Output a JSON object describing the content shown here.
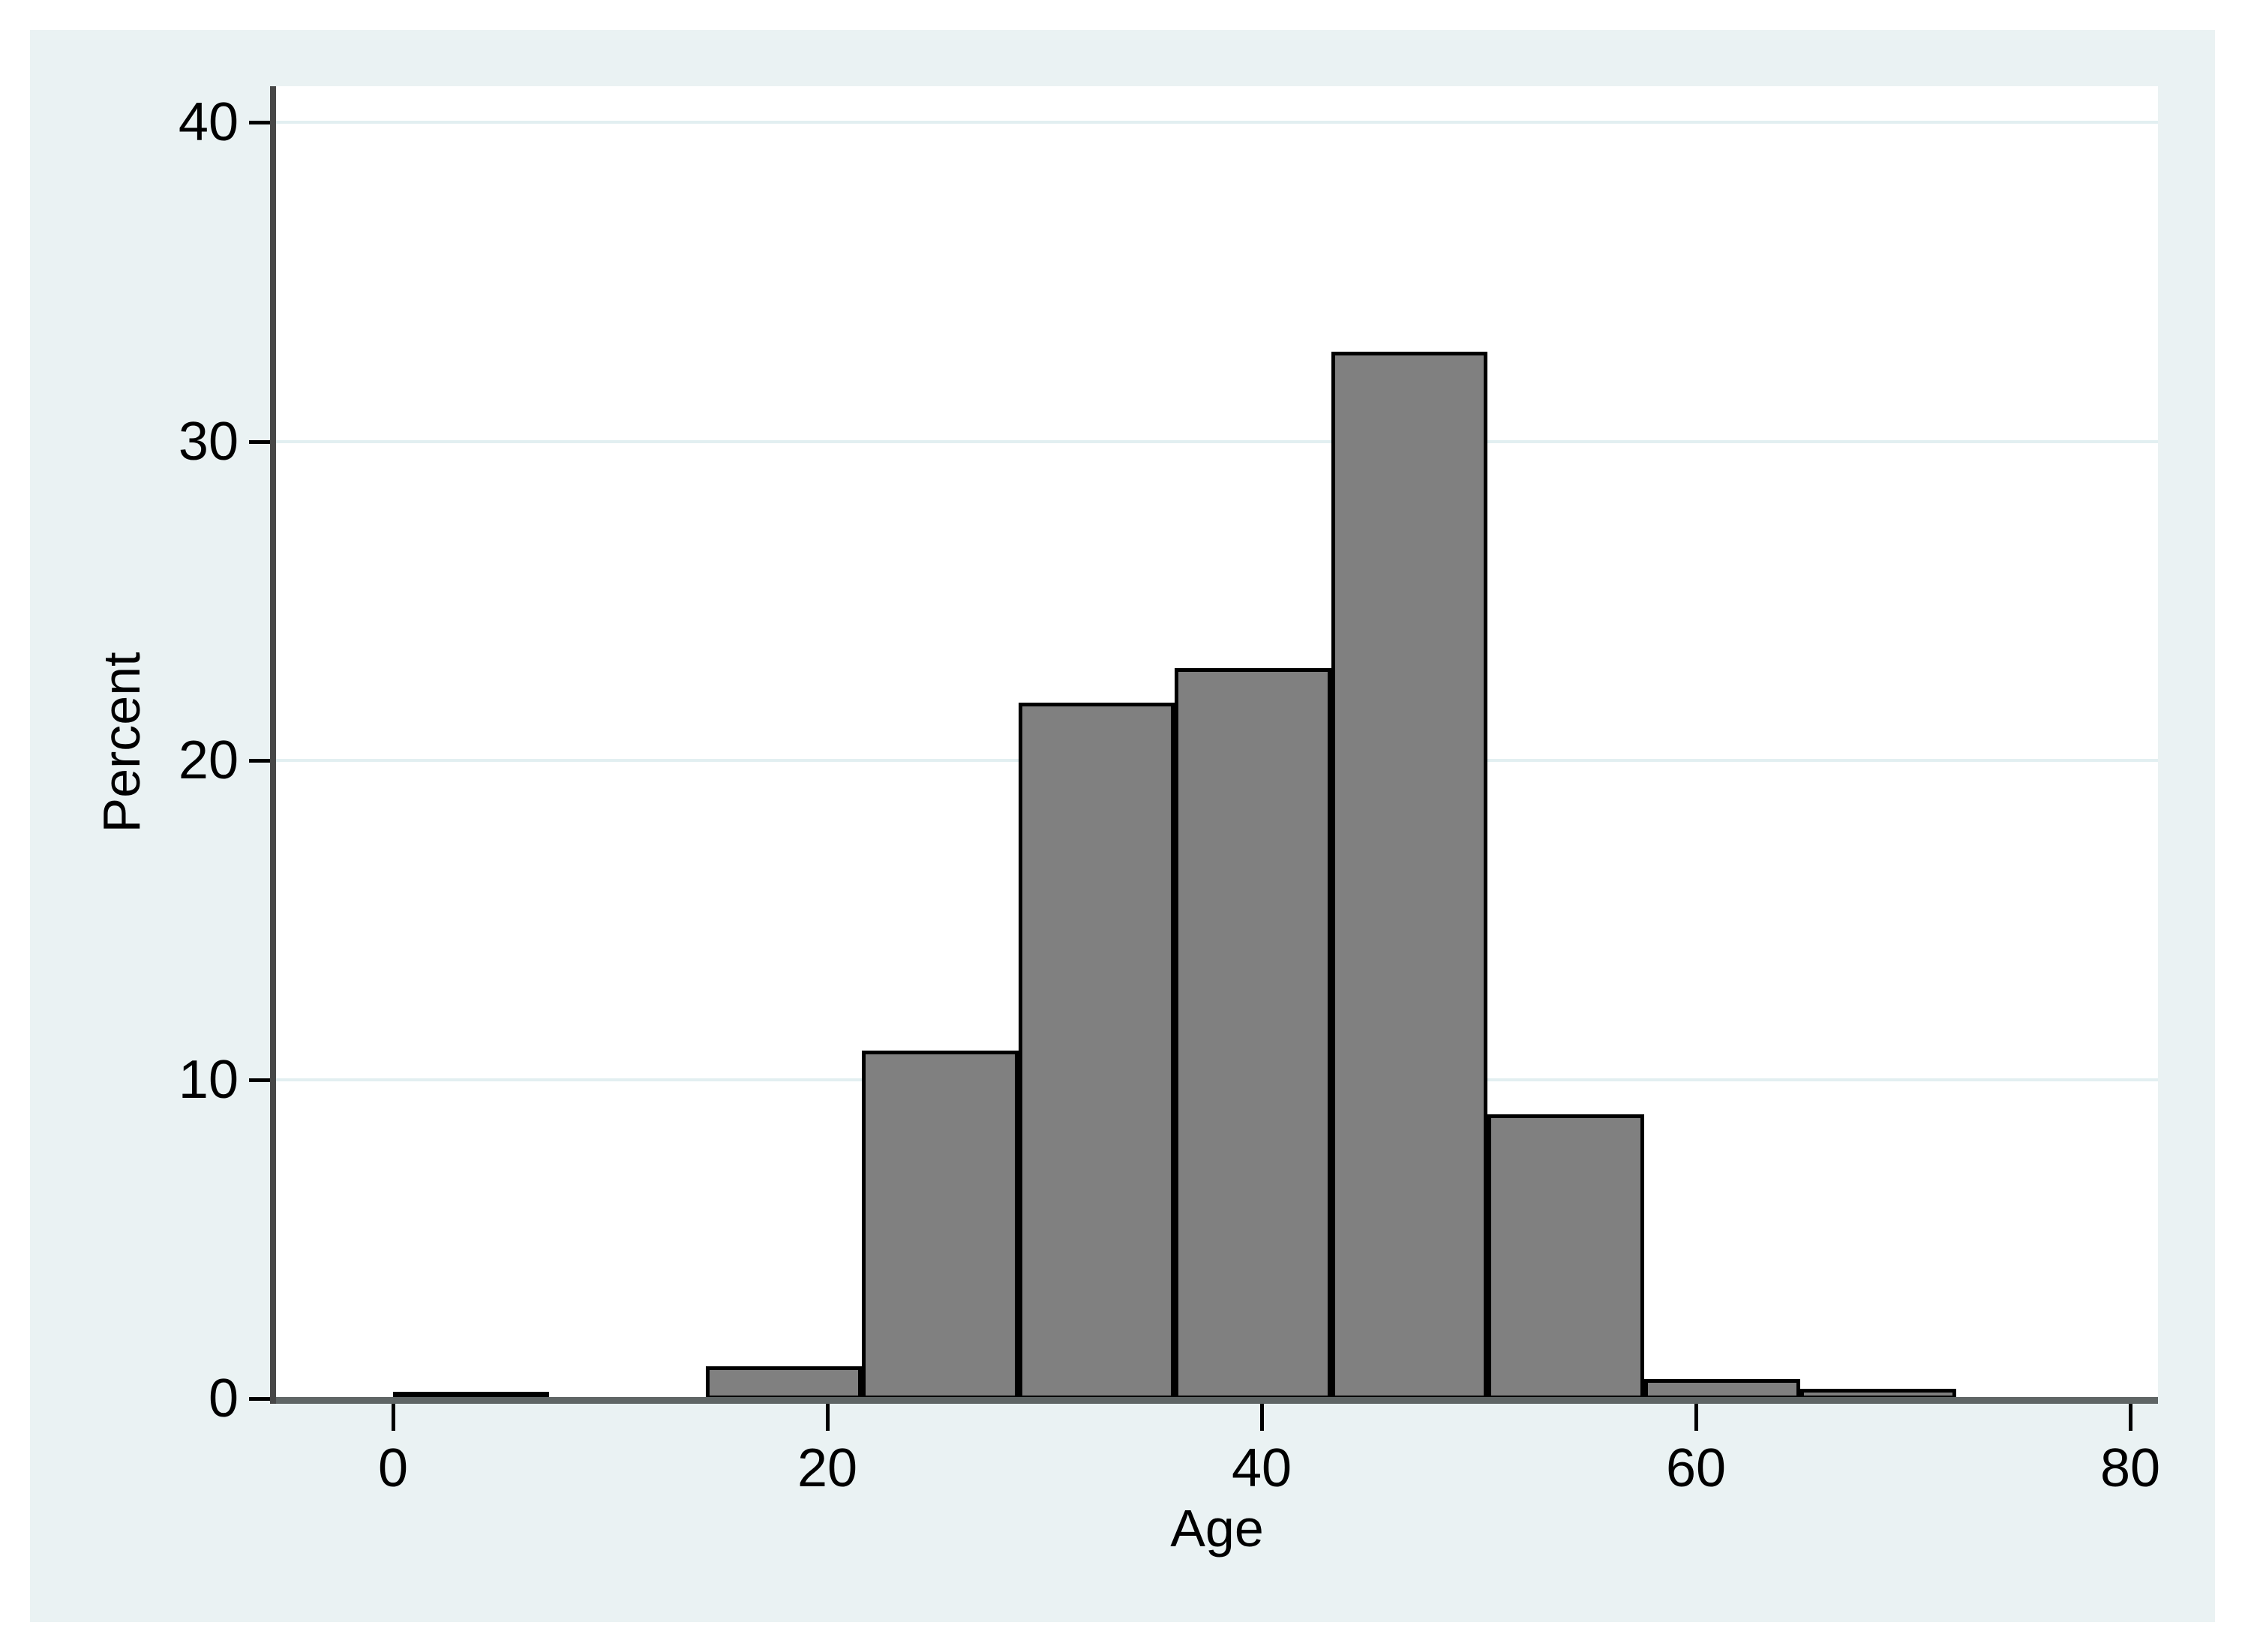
{
  "chart_data": {
    "type": "bar",
    "subtype": "histogram",
    "xlabel": "Age",
    "ylabel": "Percent",
    "x_tick_labels": [
      "0",
      "20",
      "40",
      "60",
      "80"
    ],
    "x_tick_values": [
      0,
      20,
      40,
      60,
      80
    ],
    "y_tick_labels": [
      "0",
      "10",
      "20",
      "30",
      "40"
    ],
    "y_tick_values": [
      0,
      10,
      20,
      30,
      40
    ],
    "xlim": [
      -5.4,
      81.3
    ],
    "ylim": [
      0,
      41.1
    ],
    "grid": "horizontal",
    "bin_width": 7.2,
    "bins": [
      {
        "start": 0,
        "end": 7.2,
        "percent": 0.2
      },
      {
        "start": 7.2,
        "end": 14.4,
        "percent": 0
      },
      {
        "start": 14.4,
        "end": 21.6,
        "percent": 1.0
      },
      {
        "start": 21.6,
        "end": 28.8,
        "percent": 10.9
      },
      {
        "start": 28.8,
        "end": 36,
        "percent": 21.8
      },
      {
        "start": 36,
        "end": 43.2,
        "percent": 22.9
      },
      {
        "start": 43.2,
        "end": 50.4,
        "percent": 32.8
      },
      {
        "start": 50.4,
        "end": 57.6,
        "percent": 8.9
      },
      {
        "start": 57.6,
        "end": 64.8,
        "percent": 0.6
      },
      {
        "start": 64.8,
        "end": 72,
        "percent": 0.3
      }
    ]
  },
  "colors": {
    "outer_bg": "#ffffff",
    "panel_bg": "#eaf2f3",
    "plot_bg": "#ffffff",
    "gridline": "#e2eff1",
    "bar_fill": "#808080",
    "bar_outline": "#000000",
    "y_axis_line": "#474747",
    "x_baseline": "#5f6565",
    "tick_mark": "#000000",
    "text": "#000000"
  }
}
